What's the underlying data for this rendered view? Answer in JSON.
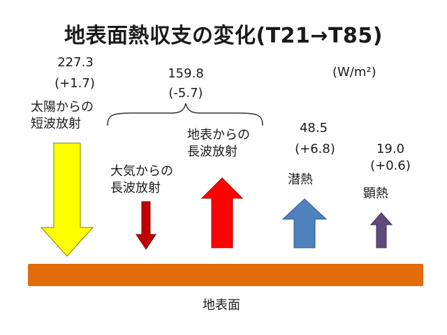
{
  "title": "地表面熱収支の変化(T21→T85)",
  "unit": "(W/m²)",
  "ground_label": "地表面",
  "colors": {
    "solar_arrow": "#ffff00",
    "atm_arrow": "#c00000",
    "surface_arrow": "#ff0000",
    "latent_arrow": "#4f81bd",
    "sensible_arrow": "#604a7b",
    "ground": "#e36c0a"
  },
  "fluxes": {
    "solar": {
      "label_line1": "太陽からの",
      "label_line2": "短波放射",
      "value": "227.3",
      "change": "(+1.7)"
    },
    "net_longwave": {
      "value": "159.8",
      "change": "(-5.7)"
    },
    "atmosphere": {
      "label_line1": "大気からの",
      "label_line2": "長波放射"
    },
    "surface": {
      "label_line1": "地表からの",
      "label_line2": "長波放射"
    },
    "latent": {
      "label": "潜熱",
      "value": "48.5",
      "change": "(+6.8)"
    },
    "sensible": {
      "label": "顕熱",
      "value": "19.0",
      "change": "(+0.6)"
    }
  }
}
